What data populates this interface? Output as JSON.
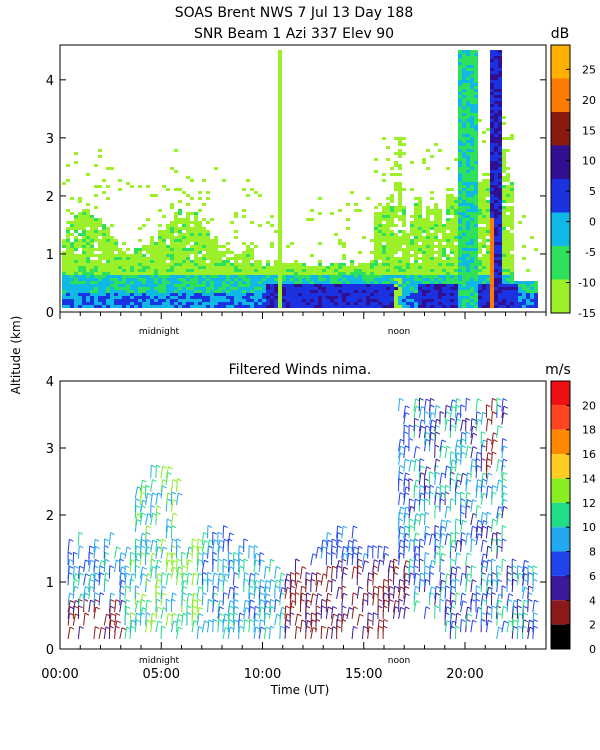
{
  "figure": {
    "title_line1": "SOAS Brent NWS    7 Jul 13 Day 188",
    "title_line2": "SNR Beam 1 Azi 337 Elev 90",
    "ylabel": "Altitude (km)",
    "xlabel": "Time (UT)",
    "x_ticks": [
      "00:00",
      "05:00",
      "10:00",
      "15:00",
      "20:00"
    ],
    "markers": [
      "midnight",
      "noon"
    ]
  },
  "colors": {
    "snr_scale": [
      "#9cf02a",
      "#2ee05a",
      "#10b8e6",
      "#1a32e0",
      "#301090",
      "#8a1a10",
      "#ff7a00",
      "#ffb000"
    ],
    "wind_scale": [
      "#000000",
      "#8b1a1a",
      "#3a1a9a",
      "#2244ee",
      "#22a8ee",
      "#22dd88",
      "#88ee22",
      "#ffcc22",
      "#ff8800",
      "#ff4422",
      "#ee1111"
    ]
  },
  "chart_data": [
    {
      "type": "heatmap",
      "title": "SNR Beam 1 Azi 337 Elev 90",
      "ylim": [
        0,
        4.6
      ],
      "y_ticks": [
        "0",
        "1",
        "2",
        "3",
        "4"
      ],
      "colorbar_unit": "dB",
      "colorbar_ticks": [
        "-15",
        "-10",
        "-5",
        "0",
        "5",
        "10",
        "15",
        "20",
        "25"
      ],
      "colorbar_range": [
        -15,
        29
      ]
    },
    {
      "type": "scatter",
      "title": "Filtered Winds nima.",
      "xlim": [
        0,
        24
      ],
      "ylim": [
        0,
        4
      ],
      "y_ticks": [
        "0",
        "1",
        "2",
        "3",
        "4"
      ],
      "colorbar_unit": "m/s",
      "colorbar_ticks": [
        "0",
        "2",
        "4",
        "6",
        "8",
        "10",
        "12",
        "14",
        "16",
        "18",
        "20"
      ],
      "colorbar_range": [
        0,
        22
      ]
    }
  ]
}
